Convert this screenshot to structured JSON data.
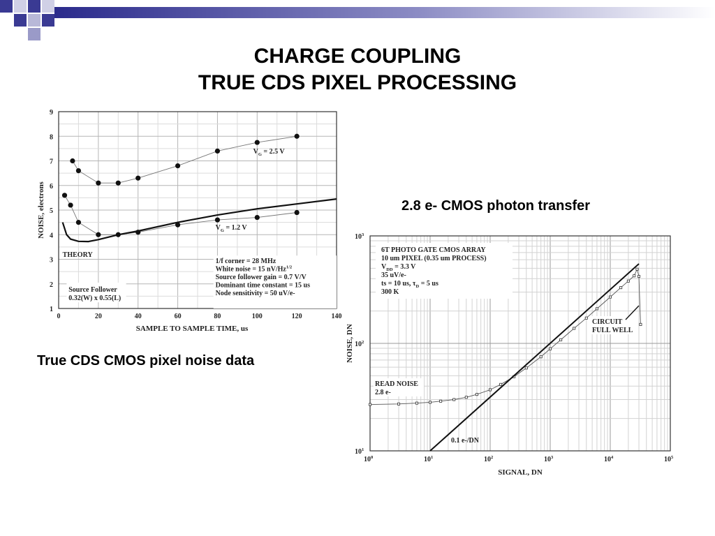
{
  "slide": {
    "title_line1": "CHARGE COUPLING",
    "title_line2": "TRUE CDS PIXEL PROCESSING",
    "caption_left": "True CDS CMOS pixel noise data",
    "caption_right": "2.8 e- CMOS photon transfer",
    "colors": {
      "header_band": "#2b2b8c",
      "squares_dark": "#3a3a93",
      "squares_light": "#b8b8d8"
    }
  },
  "chart_data": [
    {
      "type": "line",
      "xlabel": "SAMPLE TO SAMPLE TIME, us",
      "ylabel": "NOISE, electrons",
      "xlim": [
        0,
        140
      ],
      "ylim": [
        1,
        9
      ],
      "x_ticks": [
        0,
        20,
        40,
        60,
        80,
        100,
        120,
        140
      ],
      "y_ticks": [
        1,
        2,
        3,
        4,
        5,
        6,
        7,
        8,
        9
      ],
      "grid": true,
      "series": [
        {
          "name": "VG = 2.5 V",
          "label_main": "V",
          "label_sub": "G",
          "label_rest": " = 2.5 V",
          "marker": "dot",
          "points": [
            [
              7,
              7.0
            ],
            [
              10,
              6.6
            ],
            [
              20,
              6.1
            ],
            [
              30,
              6.1
            ],
            [
              40,
              6.3
            ],
            [
              60,
              6.8
            ],
            [
              80,
              7.4
            ],
            [
              100,
              7.75
            ],
            [
              120,
              8.0
            ]
          ]
        },
        {
          "name": "VG = 1.2 V",
          "label_main": "V",
          "label_sub": "G",
          "label_rest": " = 1.2 V",
          "marker": "dot",
          "points": [
            [
              3,
              5.6
            ],
            [
              6,
              5.2
            ],
            [
              10,
              4.5
            ],
            [
              20,
              4.0
            ],
            [
              30,
              4.0
            ],
            [
              40,
              4.1
            ],
            [
              60,
              4.4
            ],
            [
              80,
              4.6
            ],
            [
              100,
              4.7
            ],
            [
              120,
              4.9
            ]
          ]
        },
        {
          "name": "THEORY",
          "marker": "none",
          "points": [
            [
              2,
              4.5
            ],
            [
              4,
              4.0
            ],
            [
              6,
              3.82
            ],
            [
              10,
              3.73
            ],
            [
              15,
              3.72
            ],
            [
              20,
              3.8
            ],
            [
              30,
              4.0
            ],
            [
              40,
              4.15
            ],
            [
              60,
              4.5
            ],
            [
              80,
              4.8
            ],
            [
              100,
              5.05
            ],
            [
              120,
              5.25
            ],
            [
              140,
              5.45
            ]
          ]
        }
      ],
      "annotations": {
        "theory_label": "THEORY",
        "params": [
          "1/f corner = 28 MHz",
          "White noise = 15 nV/Hz",
          "Source follower gain = 0.7 V/V",
          "Dominant time constant = 15 us",
          "Node sensitivity = 50 uV/e-"
        ],
        "params_superscript": "1/2",
        "source_follower": [
          "Source Follower",
          "0.32(W) x 0.55(L)"
        ]
      }
    },
    {
      "type": "line",
      "xscale": "log",
      "yscale": "log",
      "xlabel": "SIGNAL, DN",
      "ylabel": "NOISE, DN",
      "xlim": [
        1,
        100000
      ],
      "ylim": [
        10,
        1000
      ],
      "x_ticks": [
        {
          "base": "10",
          "exp": "0"
        },
        {
          "base": "10",
          "exp": "1"
        },
        {
          "base": "10",
          "exp": "2"
        },
        {
          "base": "10",
          "exp": "3"
        },
        {
          "base": "10",
          "exp": "4"
        },
        {
          "base": "10",
          "exp": "5"
        }
      ],
      "y_ticks": [
        {
          "base": "10",
          "exp": "1"
        },
        {
          "base": "10",
          "exp": "2"
        },
        {
          "base": "10",
          "exp": "3"
        }
      ],
      "grid": true,
      "series": [
        {
          "name": "measured",
          "marker": "square",
          "points": [
            [
              1,
              27
            ],
            [
              3,
              27.3
            ],
            [
              6,
              27.8
            ],
            [
              10,
              28.3
            ],
            [
              15,
              29
            ],
            [
              25,
              30
            ],
            [
              40,
              31.5
            ],
            [
              60,
              33.5
            ],
            [
              100,
              37
            ],
            [
              150,
              41.5
            ],
            [
              250,
              49
            ],
            [
              400,
              59
            ],
            [
              700,
              75
            ],
            [
              1000,
              89
            ],
            [
              1500,
              108
            ],
            [
              2500,
              138
            ],
            [
              4000,
              172
            ],
            [
              6000,
              210
            ],
            [
              10000,
              270
            ],
            [
              15000,
              330
            ],
            [
              20000,
              380
            ],
            [
              25000,
              425
            ],
            [
              28000,
              490
            ],
            [
              30000,
              420
            ],
            [
              32000,
              150
            ]
          ]
        },
        {
          "name": "0.1 e-/DN",
          "marker": "none",
          "points": [
            [
              10,
              10
            ],
            [
              30000,
              550
            ]
          ]
        }
      ],
      "annotations": {
        "legend_box": [
          "6T PHOTO GATE CMOS ARRAY",
          "10 um PIXEL (0.35 um PROCESS)",
          "V = 3.3 V",
          "35 uV/e-",
          "ts = 10 us, τ = 5 us",
          "300 K"
        ],
        "vdd_main": "V",
        "vdd_sub": "DD",
        "vdd_rest": " = 3.3 V",
        "ts_main": "ts = 10 us, τ",
        "ts_sub": "D",
        "ts_rest": " = 5 us",
        "read_noise": [
          "READ NOISE",
          "2.8 e-"
        ],
        "full_well": [
          "CIRCUIT",
          "FULL WELL"
        ],
        "slope_label": "0.1 e-/DN"
      }
    }
  ]
}
